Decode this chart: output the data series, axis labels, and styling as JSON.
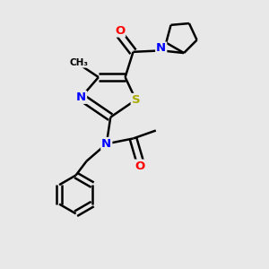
{
  "bg_color": "#e8e8e8",
  "bond_color": "#000000",
  "bond_width": 1.8,
  "dbo": 0.13,
  "atom_colors": {
    "N": "#0000ff",
    "O": "#ff0000",
    "S": "#aaaa00",
    "C": "#000000"
  },
  "font_size_atom": 9.5,
  "fig_size": [
    3.0,
    3.0
  ],
  "dpi": 100
}
